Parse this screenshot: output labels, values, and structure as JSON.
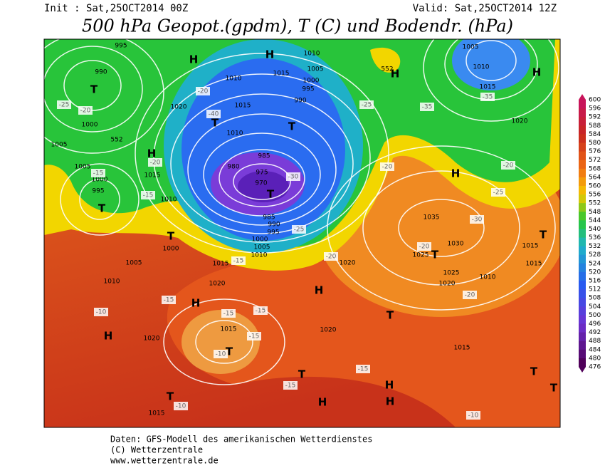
{
  "header": {
    "init": "Init : Sat,25OCT2014 00Z",
    "valid": "Valid: Sat,25OCT2014 12Z",
    "title": "500 hPa Geopot.(gpdm), T (C) und Bodendr. (hPa)"
  },
  "colorbar": {
    "labels": [
      "600",
      "596",
      "592",
      "588",
      "584",
      "580",
      "576",
      "572",
      "568",
      "564",
      "560",
      "556",
      "552",
      "548",
      "544",
      "540",
      "536",
      "532",
      "528",
      "524",
      "520",
      "516",
      "512",
      "508",
      "504",
      "500",
      "496",
      "492",
      "488",
      "484",
      "480",
      "476"
    ]
  },
  "map": {
    "centers": [
      "T",
      "T",
      "H",
      "H",
      "H",
      "T",
      "T",
      "T",
      "T",
      "H",
      "H",
      "H",
      "T",
      "T",
      "H",
      "T",
      "T",
      "H",
      "H",
      "H",
      "H",
      "H",
      "T",
      "T",
      "T",
      "T"
    ],
    "isobar_labels": [
      "995",
      "990",
      "1000",
      "1020",
      "1005",
      "1005",
      "1000",
      "995",
      "1015",
      "1010",
      "1010",
      "1005",
      "1015",
      "1000",
      "995",
      "990",
      "1010",
      "1015",
      "1010",
      "985",
      "980",
      "975",
      "970",
      "985",
      "990",
      "995",
      "1000",
      "1005",
      "1010",
      "1000",
      "1005",
      "1015",
      "1010",
      "1020",
      "1020",
      "1015",
      "1020",
      "1020",
      "1015",
      "1035",
      "1030",
      "1025",
      "1025",
      "1020",
      "1010",
      "1015",
      "1005",
      "1010",
      "1015",
      "1020",
      "552",
      "552",
      "1015",
      "1015"
    ],
    "temperature_labels": [
      "-25",
      "-20",
      "-15",
      "-15",
      "-20",
      "-20",
      "-40",
      "-25",
      "-30",
      "-25",
      "-20",
      "-15",
      "-15",
      "-15",
      "-15",
      "-10",
      "-15",
      "-15",
      "-10",
      "-10",
      "-10",
      "-15",
      "-20",
      "-20",
      "-25",
      "-30",
      "-35",
      "-20",
      "-20",
      "-35"
    ]
  },
  "footer": {
    "line1": "Daten: GFS-Modell des amerikanischen Wetterdienstes",
    "line2": "(C) Wetterzentrale",
    "line3": "www.wetterzentrale.de"
  }
}
